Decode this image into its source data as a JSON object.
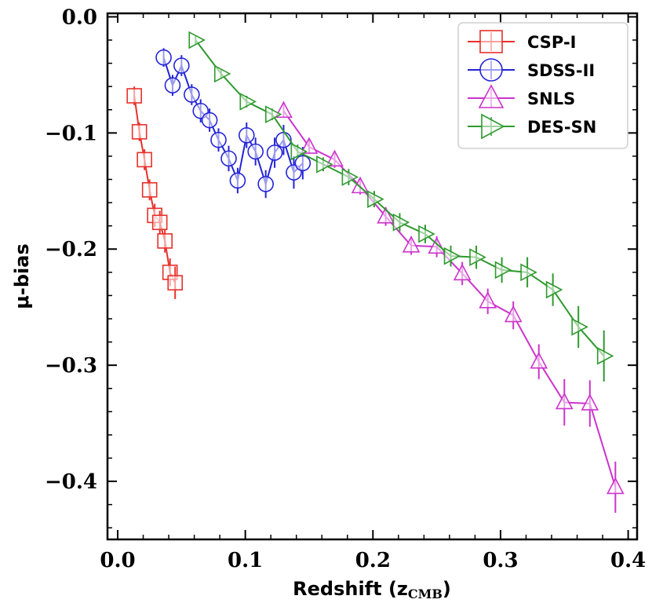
{
  "chart_data": {
    "type": "line",
    "title": "",
    "xlabel": "Redshift (z",
    "xlabel_sub": "CMB",
    "xlabel_close": ")",
    "ylabel": "μ-bias",
    "xlim": [
      -0.008,
      0.407
    ],
    "ylim": [
      -0.45,
      0.003
    ],
    "xticks": [
      0.0,
      0.1,
      0.2,
      0.3,
      0.4
    ],
    "xtick_labels": [
      "0.0",
      "0.1",
      "0.2",
      "0.3",
      "0.4"
    ],
    "yticks": [
      0.0,
      -0.1,
      -0.2,
      -0.3,
      -0.4
    ],
    "ytick_labels": [
      "0.0",
      "−0.1",
      "−0.2",
      "−0.3",
      "−0.4"
    ],
    "grid": false,
    "legend_position": "top-right",
    "series": [
      {
        "name": "CSP-I",
        "color": "#e8302a",
        "marker": "square",
        "x": [
          0.013,
          0.017,
          0.021,
          0.025,
          0.029,
          0.033,
          0.037,
          0.041,
          0.045
        ],
        "y": [
          -0.068,
          -0.099,
          -0.123,
          -0.149,
          -0.171,
          -0.177,
          -0.193,
          -0.22,
          -0.229
        ],
        "err": [
          0.008,
          0.008,
          0.009,
          0.009,
          0.01,
          0.01,
          0.01,
          0.012,
          0.014
        ]
      },
      {
        "name": "SDSS-II",
        "color": "#2424d8",
        "marker": "circle",
        "x": [
          0.036,
          0.043,
          0.05,
          0.058,
          0.065,
          0.072,
          0.079,
          0.087,
          0.094,
          0.101,
          0.108,
          0.116,
          0.123,
          0.13,
          0.138,
          0.145
        ],
        "y": [
          -0.035,
          -0.059,
          -0.042,
          -0.067,
          -0.081,
          -0.089,
          -0.106,
          -0.122,
          -0.141,
          -0.102,
          -0.116,
          -0.144,
          -0.117,
          -0.106,
          -0.134,
          -0.126
        ],
        "err": [
          0.008,
          0.009,
          0.009,
          0.009,
          0.01,
          0.01,
          0.01,
          0.011,
          0.011,
          0.011,
          0.012,
          0.012,
          0.013,
          0.013,
          0.014,
          0.014
        ]
      },
      {
        "name": "SNLS",
        "color": "#cc33cc",
        "marker": "triangle-up",
        "x": [
          0.13,
          0.15,
          0.17,
          0.19,
          0.21,
          0.23,
          0.25,
          0.27,
          0.29,
          0.31,
          0.33,
          0.35,
          0.37,
          0.39
        ],
        "y": [
          -0.081,
          -0.112,
          -0.123,
          -0.146,
          -0.172,
          -0.197,
          -0.198,
          -0.221,
          -0.245,
          -0.257,
          -0.297,
          -0.332,
          -0.333,
          -0.405
        ],
        "err": [
          0.006,
          0.006,
          0.007,
          0.007,
          0.008,
          0.008,
          0.009,
          0.01,
          0.011,
          0.012,
          0.015,
          0.02,
          0.02,
          0.022
        ]
      },
      {
        "name": "DES-SN",
        "color": "#2e9a2e",
        "marker": "triangle-right",
        "x": [
          0.061,
          0.081,
          0.101,
          0.121,
          0.141,
          0.161,
          0.181,
          0.201,
          0.221,
          0.241,
          0.261,
          0.281,
          0.301,
          0.321,
          0.341,
          0.361,
          0.381
        ],
        "y": [
          -0.02,
          -0.049,
          -0.073,
          -0.084,
          -0.116,
          -0.127,
          -0.138,
          -0.157,
          -0.177,
          -0.187,
          -0.206,
          -0.207,
          -0.218,
          -0.22,
          -0.235,
          -0.267,
          -0.292
        ],
        "err": [
          0.004,
          0.004,
          0.005,
          0.005,
          0.006,
          0.006,
          0.007,
          0.007,
          0.008,
          0.008,
          0.009,
          0.01,
          0.011,
          0.013,
          0.014,
          0.018,
          0.022
        ]
      }
    ]
  }
}
